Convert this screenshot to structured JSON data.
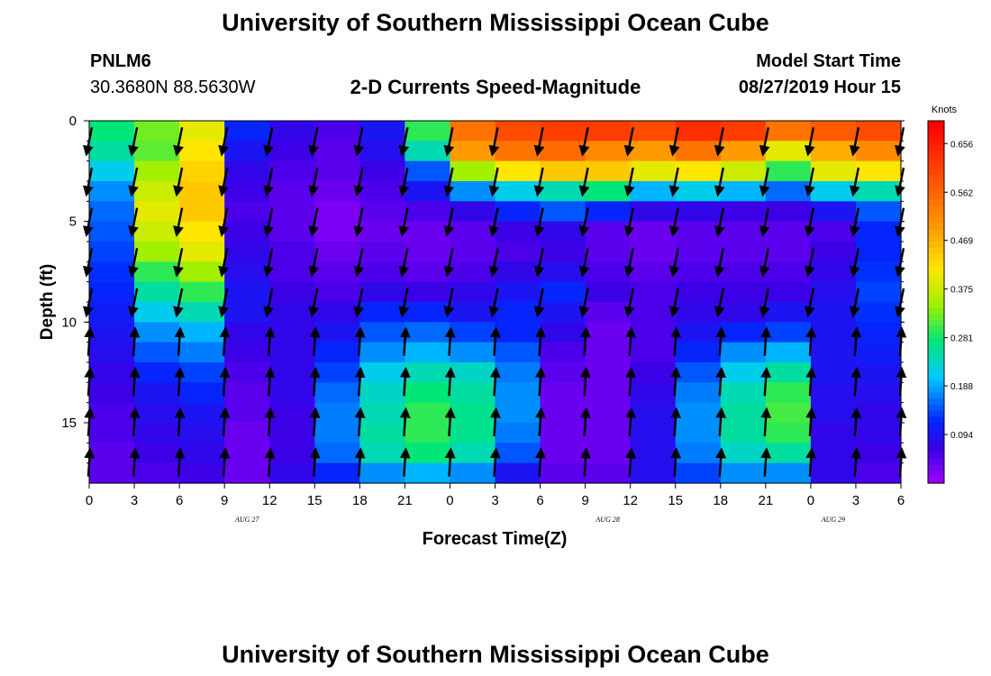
{
  "title": "University of Southern Mississippi Ocean Cube",
  "footer_title": "University of Southern Mississippi Ocean Cube",
  "station": {
    "name": "PNLM6",
    "coords": "30.3680N 88.5630W"
  },
  "model": {
    "label": "Model Start Time",
    "time": "08/27/2019 Hour 15"
  },
  "chart_data": {
    "type": "heatmap",
    "title": "2-D Currents Speed-Magnitude",
    "xlabel": "Forecast Time(Z)",
    "ylabel": "Depth (ft)",
    "ylim": [
      18,
      0
    ],
    "y_ticks": [
      0,
      5,
      10,
      15
    ],
    "x_tick_labels": [
      "0",
      "3",
      "6",
      "9",
      "12",
      "15",
      "18",
      "21",
      "0",
      "3",
      "6",
      "9",
      "12",
      "15",
      "18",
      "21",
      "0",
      "3",
      "6"
    ],
    "date_labels": [
      {
        "label": "AUG 27",
        "tick_index": 3.5
      },
      {
        "label": "AUG 28",
        "tick_index": 11.5
      },
      {
        "label": "AUG 29",
        "tick_index": 16.5
      }
    ],
    "colorbar": {
      "unit": "Knots",
      "range": [
        0,
        0.7
      ],
      "tick_labels": [
        "0.656",
        "0.562",
        "0.469",
        "0.375",
        "0.281",
        "0.188",
        "0.094"
      ],
      "tick_values": [
        0.656,
        0.562,
        0.469,
        0.375,
        0.281,
        0.188,
        0.094
      ]
    },
    "layer_depths": [
      0,
      1,
      2,
      3,
      4,
      5,
      6,
      7,
      8,
      9,
      10,
      11,
      12,
      13,
      14,
      15,
      16,
      17,
      18
    ],
    "time_columns": 18,
    "time_hours_per_column": 3,
    "speed_grid_knots": [
      [
        0.28,
        0.33,
        0.4,
        0.12,
        0.08,
        0.06,
        0.1,
        0.3,
        0.55,
        0.6,
        0.62,
        0.62,
        0.6,
        0.64,
        0.62,
        0.55,
        0.58,
        0.6
      ],
      [
        0.26,
        0.32,
        0.42,
        0.1,
        0.07,
        0.05,
        0.09,
        0.25,
        0.5,
        0.55,
        0.56,
        0.52,
        0.5,
        0.55,
        0.5,
        0.4,
        0.48,
        0.52
      ],
      [
        0.22,
        0.35,
        0.44,
        0.08,
        0.06,
        0.05,
        0.07,
        0.15,
        0.35,
        0.42,
        0.45,
        0.45,
        0.4,
        0.42,
        0.38,
        0.3,
        0.4,
        0.42
      ],
      [
        0.18,
        0.38,
        0.45,
        0.07,
        0.05,
        0.04,
        0.06,
        0.1,
        0.18,
        0.22,
        0.25,
        0.28,
        0.2,
        0.22,
        0.2,
        0.16,
        0.22,
        0.25
      ],
      [
        0.16,
        0.4,
        0.45,
        0.06,
        0.05,
        0.03,
        0.05,
        0.06,
        0.08,
        0.12,
        0.15,
        0.12,
        0.08,
        0.08,
        0.07,
        0.07,
        0.1,
        0.15
      ],
      [
        0.15,
        0.38,
        0.42,
        0.07,
        0.05,
        0.03,
        0.04,
        0.04,
        0.05,
        0.07,
        0.08,
        0.05,
        0.04,
        0.05,
        0.05,
        0.05,
        0.06,
        0.12
      ],
      [
        0.14,
        0.35,
        0.4,
        0.08,
        0.06,
        0.04,
        0.05,
        0.04,
        0.05,
        0.06,
        0.07,
        0.05,
        0.04,
        0.05,
        0.05,
        0.05,
        0.07,
        0.12
      ],
      [
        0.13,
        0.3,
        0.35,
        0.09,
        0.06,
        0.05,
        0.06,
        0.05,
        0.06,
        0.08,
        0.09,
        0.06,
        0.05,
        0.06,
        0.06,
        0.06,
        0.08,
        0.13
      ],
      [
        0.12,
        0.26,
        0.3,
        0.1,
        0.07,
        0.06,
        0.08,
        0.07,
        0.08,
        0.1,
        0.12,
        0.07,
        0.06,
        0.07,
        0.07,
        0.07,
        0.09,
        0.14
      ],
      [
        0.11,
        0.22,
        0.25,
        0.1,
        0.08,
        0.08,
        0.12,
        0.12,
        0.1,
        0.12,
        0.1,
        0.05,
        0.06,
        0.08,
        0.08,
        0.1,
        0.1,
        0.13
      ],
      [
        0.1,
        0.18,
        0.2,
        0.08,
        0.08,
        0.1,
        0.15,
        0.16,
        0.14,
        0.12,
        0.08,
        0.04,
        0.06,
        0.1,
        0.12,
        0.14,
        0.1,
        0.12
      ],
      [
        0.09,
        0.15,
        0.17,
        0.07,
        0.08,
        0.12,
        0.18,
        0.2,
        0.18,
        0.15,
        0.06,
        0.04,
        0.06,
        0.12,
        0.18,
        0.2,
        0.1,
        0.11
      ],
      [
        0.08,
        0.12,
        0.14,
        0.06,
        0.08,
        0.14,
        0.22,
        0.25,
        0.24,
        0.17,
        0.05,
        0.04,
        0.07,
        0.15,
        0.22,
        0.26,
        0.1,
        0.1
      ],
      [
        0.07,
        0.1,
        0.12,
        0.05,
        0.08,
        0.16,
        0.24,
        0.28,
        0.26,
        0.18,
        0.04,
        0.04,
        0.08,
        0.17,
        0.25,
        0.3,
        0.09,
        0.09
      ],
      [
        0.06,
        0.09,
        0.1,
        0.05,
        0.07,
        0.17,
        0.25,
        0.3,
        0.27,
        0.18,
        0.04,
        0.04,
        0.09,
        0.18,
        0.26,
        0.31,
        0.09,
        0.08
      ],
      [
        0.06,
        0.08,
        0.09,
        0.04,
        0.07,
        0.17,
        0.26,
        0.3,
        0.27,
        0.17,
        0.04,
        0.04,
        0.09,
        0.18,
        0.26,
        0.3,
        0.08,
        0.08
      ],
      [
        0.05,
        0.07,
        0.08,
        0.04,
        0.07,
        0.16,
        0.25,
        0.28,
        0.25,
        0.15,
        0.04,
        0.04,
        0.09,
        0.17,
        0.24,
        0.26,
        0.08,
        0.07
      ],
      [
        0.05,
        0.06,
        0.07,
        0.04,
        0.08,
        0.12,
        0.18,
        0.2,
        0.18,
        0.1,
        0.05,
        0.05,
        0.09,
        0.14,
        0.18,
        0.18,
        0.08,
        0.06
      ]
    ],
    "current_direction_note": "Arrows show current direction at sampled depths; mostly southward near surface, northward at depth."
  }
}
